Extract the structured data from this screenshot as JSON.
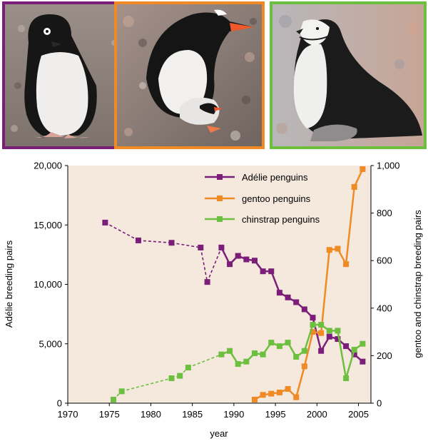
{
  "photos": [
    {
      "name": "adelie-penguin-photo",
      "frame_color": "#7b1e7a"
    },
    {
      "name": "gentoo-penguin-photo",
      "frame_color": "#f08a24"
    },
    {
      "name": "chinstrap-penguin-photo",
      "frame_color": "#6dbf3f"
    }
  ],
  "chart_data": {
    "type": "line",
    "xlabel": "year",
    "ylabel_left": "Adélie breeding pairs",
    "ylabel_right": "gentoo and chinstrap breeding pairs",
    "xlim": [
      1970,
      2006.5
    ],
    "xticks": [
      1970,
      1975,
      1980,
      1985,
      1990,
      1995,
      2000,
      2005
    ],
    "ylim_left": [
      0,
      20000
    ],
    "yticks_left": [
      "0",
      "5,000",
      "10,000",
      "15,000",
      "20,000"
    ],
    "ylim_right": [
      0,
      1000
    ],
    "yticks_right": [
      "0",
      "200",
      "400",
      "600",
      "800",
      "1,000"
    ],
    "plot_background": "#f5e8dc",
    "grid": false,
    "legend_position": "top-right",
    "series": [
      {
        "name": "Adélie penguins",
        "axis": "left",
        "color": "#7b1e7a",
        "dashed_until": 1988.5,
        "x": [
          1974.5,
          1978.5,
          1982.5,
          1986,
          1986.8,
          1988.5,
          1989.5,
          1990.5,
          1991.5,
          1992.5,
          1993.5,
          1994.5,
          1995.5,
          1996.5,
          1997.5,
          1998.5,
          1999.5,
          2000.5,
          2001.5,
          2002.5,
          2003.5,
          2004.5,
          2005.5
        ],
        "y": [
          15200,
          13700,
          13500,
          13100,
          10200,
          13100,
          11700,
          12400,
          12100,
          12000,
          11100,
          11100,
          9300,
          8900,
          8500,
          7900,
          7200,
          4400,
          5600,
          5400,
          4800,
          4100,
          3500
        ]
      },
      {
        "name": "gentoo penguins",
        "axis": "right",
        "color": "#f08a24",
        "x": [
          1992.5,
          1993.5,
          1994.5,
          1995.5,
          1996.5,
          1997.5,
          1998.5,
          1999.5,
          2000.5,
          2001.5,
          2002.5,
          2003.5,
          2004.5,
          2005.5
        ],
        "y": [
          15,
          35,
          40,
          45,
          60,
          25,
          155,
          300,
          295,
          645,
          650,
          585,
          910,
          985
        ]
      },
      {
        "name": "chinstrap penguins",
        "axis": "right",
        "color": "#6dbf3f",
        "dashed_until": 1988.5,
        "x": [
          1975.5,
          1976.5,
          1982.5,
          1983.5,
          1984.5,
          1988.5,
          1989.5,
          1990.5,
          1991.5,
          1992.5,
          1993.5,
          1994.5,
          1995.5,
          1996.5,
          1997.5,
          1998.5,
          1999.5,
          2000.5,
          2001.5,
          2002.5,
          2003.5,
          2004.5,
          2005.5
        ],
        "y": [
          15,
          50,
          105,
          115,
          150,
          205,
          220,
          165,
          175,
          210,
          205,
          255,
          240,
          255,
          195,
          220,
          330,
          330,
          305,
          305,
          105,
          225,
          250
        ]
      }
    ]
  }
}
